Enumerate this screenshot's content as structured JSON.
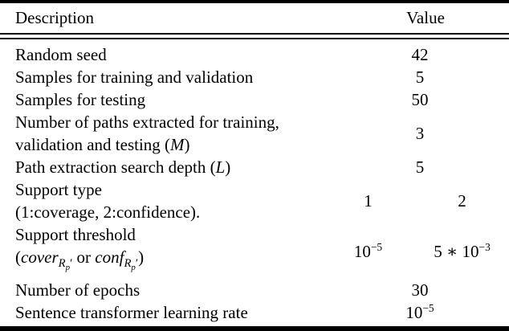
{
  "header": {
    "description": "Description",
    "value": "Value"
  },
  "rows": {
    "r1": {
      "desc": "Random seed",
      "value": "42"
    },
    "r2": {
      "desc": "Samples for training and validation",
      "value": "5"
    },
    "r3": {
      "desc": "Samples for testing",
      "value": "50"
    },
    "r4": {
      "line1": "Number of paths extracted for training,",
      "line2_pre": "validation and testing (",
      "line2_var": "M",
      "line2_post": ")",
      "value": "3"
    },
    "r5": {
      "desc_pre": "Path extraction search depth (",
      "desc_var": "L",
      "desc_post": ")",
      "value": "5"
    },
    "r6": {
      "line1": "Support type",
      "line2": "(1:coverage, 2:confidence).",
      "value_left": "1",
      "value_right": "2"
    },
    "r7": {
      "line1": "Support threshold",
      "open": "(",
      "term1": "cover",
      "sub1_R": "R",
      "sub1_p": "p",
      "prime1": "′",
      "connector": " or ",
      "term2": "conf",
      "sub2_R": "R",
      "sub2_p": "p",
      "prime2": "′",
      "close": ")",
      "value_left_base": "10",
      "value_left_exp": "−5",
      "value_right_base": "5 ∗ 10",
      "value_right_exp": "−3"
    },
    "r8": {
      "desc": "Number of epochs",
      "value": "30"
    },
    "r9": {
      "desc": "Sentence transformer learning rate",
      "value_base": "10",
      "value_exp": "−5"
    }
  }
}
